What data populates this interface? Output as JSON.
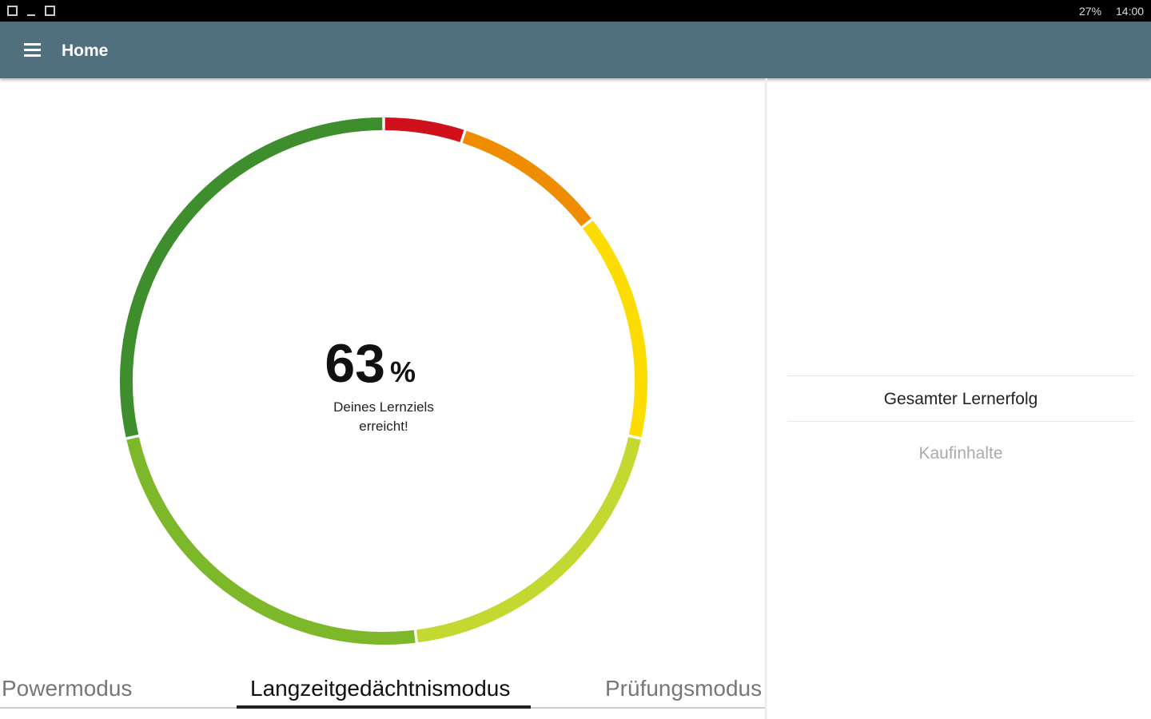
{
  "status_bar": {
    "battery": "27%",
    "time": "14:00"
  },
  "app_bar": {
    "title": "Home"
  },
  "chart_data": {
    "type": "donut",
    "values": [
      5,
      9.5,
      14,
      19.5,
      23.5,
      28.5
    ],
    "colors": [
      "#d0101a",
      "#f08c00",
      "#fddc00",
      "#c4d832",
      "#7cb82a",
      "#3e8e2e"
    ]
  },
  "center": {
    "value": "63",
    "unit": "%",
    "caption_line1": "Deines Lernziels",
    "caption_line2": "erreicht!"
  },
  "tabs": [
    "Powermodus",
    "Langzeitgedächtnismodus",
    "Prüfungsmodus"
  ],
  "side_menu": [
    "Gesamter Lernerfolg",
    "Kaufinhalte"
  ]
}
